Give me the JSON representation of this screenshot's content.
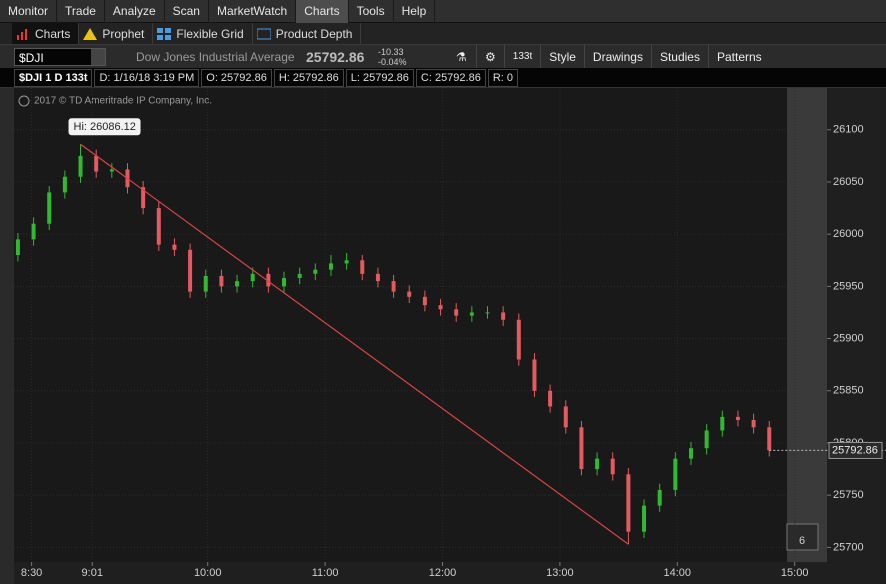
{
  "menu": [
    "Monitor",
    "Trade",
    "Analyze",
    "Scan",
    "MarketWatch",
    "Charts",
    "Tools",
    "Help"
  ],
  "tabs": [
    "Charts",
    "Prophet",
    "Flexible Grid",
    "Product Depth"
  ],
  "toolbar": {
    "symbol": "$DJI",
    "description": "Dow Jones Industrial Average",
    "last": 25792.86,
    "change": -10.33,
    "change_percent": "-0.04%",
    "aggregation": "133t",
    "buttons": [
      "Style",
      "Drawings",
      "Studies",
      "Patterns"
    ]
  },
  "info_bar": [
    "$DJI 1 D 133t",
    "D: 1/16/18 3:19 PM",
    "O: 25792.86",
    "H: 25792.86",
    "L: 25792.86",
    "C: 25792.86",
    "R: 0"
  ],
  "chart_data": {
    "type": "candlestick",
    "copyright": "2017 © TD Ameritrade IP Company, Inc.",
    "high_label": "Hi: 26086.12",
    "last": 25792.86,
    "badge": "6",
    "up_color": "#33b833",
    "down_color": "#e35b60",
    "trendline": {
      "x": [
        535,
        815
      ],
      "y": [
        26086.12,
        25703
      ],
      "color": "#d94444"
    },
    "xlim": [
      501,
      916
    ],
    "xticks": [
      {
        "value": 510,
        "label": "8:30"
      },
      {
        "value": 541,
        "label": "9:01"
      },
      {
        "value": 600,
        "label": "10:00"
      },
      {
        "value": 660,
        "label": "11:00"
      },
      {
        "value": 720,
        "label": "12:00"
      },
      {
        "value": 780,
        "label": "13:00"
      },
      {
        "value": 840,
        "label": "14:00"
      },
      {
        "value": 900,
        "label": "15:00"
      }
    ],
    "ylim": [
      25686,
      26140
    ],
    "yticks": [
      25700,
      25750,
      25800,
      25850,
      25900,
      25950,
      26000,
      26050,
      26100
    ],
    "grid": true,
    "series": {
      "x": [
        503,
        511,
        519,
        527,
        535,
        543,
        551,
        559,
        567,
        575,
        583,
        591,
        599,
        607,
        615,
        623,
        631,
        639,
        647,
        655,
        663,
        671,
        679,
        687,
        695,
        703,
        711,
        719,
        727,
        735,
        743,
        751,
        759,
        767,
        775,
        783,
        791,
        799,
        807,
        815,
        823,
        831,
        839,
        847,
        855,
        863,
        871,
        879,
        887
      ],
      "open": [
        25980,
        25995,
        26010,
        26040,
        26055,
        26075,
        26060,
        26062,
        26045,
        26025,
        25990,
        25985,
        25945,
        25960,
        25950,
        25955,
        25962,
        25950,
        25958,
        25962,
        25966,
        25972,
        25975,
        25962,
        25955,
        25945,
        25940,
        25932,
        25928,
        25922,
        25925,
        25925,
        25918,
        25880,
        25850,
        25835,
        25815,
        25775,
        25785,
        25770,
        25715,
        25740,
        25755,
        25785,
        25795,
        25812,
        25825,
        25822,
        25815
      ],
      "high": [
        26001,
        26016,
        26046,
        26061,
        26086.12,
        26081,
        26068,
        26068,
        26051,
        26031,
        25996,
        25991,
        25966,
        25966,
        25961,
        25968,
        25968,
        25964,
        25968,
        25972,
        25980,
        25982,
        25980,
        25968,
        25961,
        25951,
        25946,
        25938,
        25934,
        25931,
        25931,
        25931,
        25924,
        25886,
        25856,
        25841,
        25821,
        25791,
        25791,
        25776,
        25746,
        25761,
        25791,
        25801,
        25818,
        25831,
        25831,
        25828,
        25821
      ],
      "low": [
        25974,
        25989,
        26004,
        26034,
        26049,
        26054,
        26054,
        26039,
        26019,
        25984,
        25979,
        25939,
        25939,
        25944,
        25944,
        25949,
        25944,
        25944,
        25952,
        25956,
        25960,
        25966,
        25956,
        25949,
        25939,
        25934,
        25926,
        25922,
        25916,
        25916,
        25919,
        25912,
        25874,
        25844,
        25829,
        25809,
        25769,
        25769,
        25764,
        25703,
        25709,
        25734,
        25749,
        25779,
        25789,
        25806,
        25816,
        25809,
        25787
      ],
      "close": [
        25995,
        26010,
        26040,
        26055,
        26075,
        26060,
        26062,
        26045,
        26025,
        25990,
        25985,
        25945,
        25960,
        25950,
        25955,
        25962,
        25950,
        25958,
        25962,
        25966,
        25972,
        25975,
        25962,
        25955,
        25945,
        25940,
        25932,
        25928,
        25922,
        25925,
        25925,
        25918,
        25880,
        25850,
        25835,
        25815,
        25775,
        25785,
        25770,
        25715,
        25740,
        25755,
        25785,
        25795,
        25812,
        25825,
        25822,
        25815,
        25793
      ]
    }
  }
}
